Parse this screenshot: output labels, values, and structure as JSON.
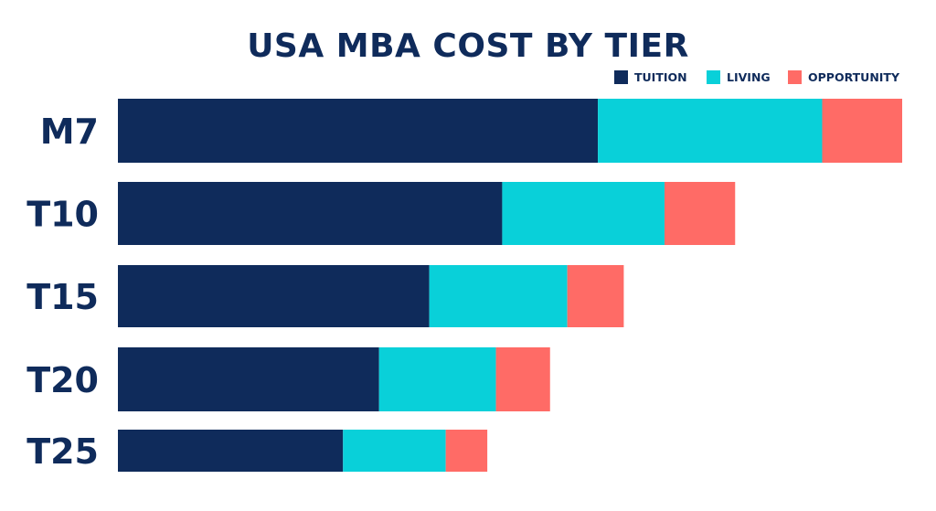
{
  "chart_data": {
    "type": "bar",
    "orientation": "horizontal",
    "stacked": true,
    "title": "USA MBA COST BY TIER",
    "xlabel": "",
    "ylabel": "",
    "grid": false,
    "legend_position": "top-right",
    "categories": [
      "M7",
      "T10",
      "T15",
      "T20",
      "T25"
    ],
    "series": [
      {
        "name": "TUITION",
        "color": "#0f2b5b",
        "values": [
          61.2,
          49.0,
          39.7,
          33.3,
          28.7
        ]
      },
      {
        "name": "LIVING",
        "color": "#09d0d9",
        "values": [
          28.6,
          20.7,
          17.6,
          14.9,
          13.1
        ]
      },
      {
        "name": "OPPORTUNITY",
        "color": "#ff6b66",
        "values": [
          10.2,
          9.0,
          7.2,
          6.9,
          5.3
        ]
      }
    ],
    "xlim": [
      0,
      100
    ]
  }
}
